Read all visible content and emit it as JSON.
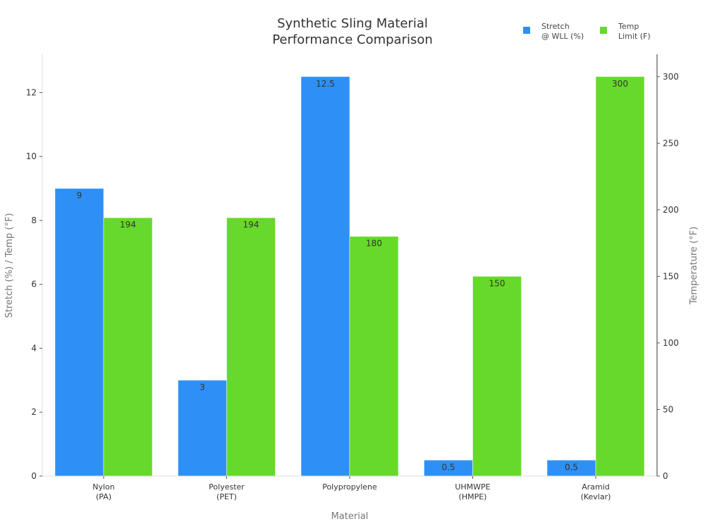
{
  "chart_data": {
    "type": "bar",
    "title": "Synthetic Sling Material\nPerformance Comparison",
    "xlabel": "Material",
    "ylabel": "Stretch (%) / Temp (°F)",
    "y2label": "Temperature (°F)",
    "categories": [
      "Nylon\n(PA)",
      "Polyester\n(PET)",
      "Polypropylene",
      "UHMWPE\n(HMPE)",
      "Aramid\n(Kevlar)"
    ],
    "series": [
      {
        "name": "Stretch\n@ WLL (%)",
        "axis": "left",
        "color": "#2e90f5",
        "values": [
          9,
          3,
          12.5,
          0.5,
          0.5
        ],
        "labels": [
          "9",
          "3",
          "12.5",
          "0.5",
          "0.5"
        ]
      },
      {
        "name": "Temp\nLimit (F)",
        "axis": "right",
        "color": "#66d92a",
        "values": [
          194,
          194,
          180,
          150,
          300
        ],
        "labels": [
          "194",
          "194",
          "180",
          "150",
          "300"
        ]
      }
    ],
    "ylim": [
      0,
      13.2
    ],
    "y2lim": [
      0,
      316.8
    ],
    "yticks": [
      0,
      2,
      4,
      6,
      8,
      10,
      12
    ],
    "y2ticks": [
      0,
      50,
      100,
      150,
      200,
      250,
      300
    ],
    "grid": false,
    "legend": "top-right"
  }
}
